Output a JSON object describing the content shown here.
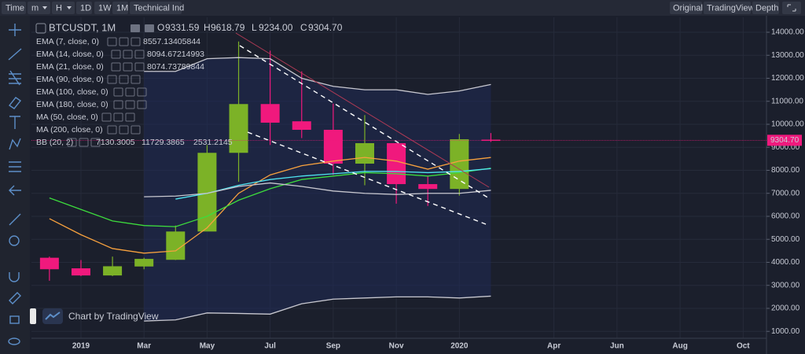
{
  "toolbar": {
    "left": [
      "Time",
      "m",
      "H",
      "1D",
      "1W",
      "1M",
      "Technical Ind"
    ],
    "active_left": 5,
    "right": [
      "Original",
      "TradingView",
      "Depth"
    ],
    "active_right": 1
  },
  "legend": {
    "symbol": "BTCUSDT, 1M",
    "ohlc": [
      {
        "key": "O",
        "value": "9331.59"
      },
      {
        "key": "H",
        "value": "9618.79"
      },
      {
        "key": "L",
        "value": "9234.00"
      },
      {
        "key": "C",
        "value": "9304.70"
      }
    ]
  },
  "indicators": [
    {
      "name": "EMA (7, close, 0)",
      "values": [
        "8557.13405844"
      ],
      "color": "#f7a13e"
    },
    {
      "name": "EMA (14, close, 0)",
      "values": [
        "8094.67214993"
      ],
      "color": "#3ddc3d"
    },
    {
      "name": "EMA (21, close, 0)",
      "values": [
        "8074.73789844"
      ],
      "color": "#4fe3f0"
    },
    {
      "name": "EMA (90, close, 0)",
      "values": []
    },
    {
      "name": "EMA (100, close, 0)",
      "values": []
    },
    {
      "name": "EMA (180, close, 0)",
      "values": []
    },
    {
      "name": "MA (50, close, 0)",
      "values": []
    },
    {
      "name": "MA (200, close, 0)",
      "values": []
    },
    {
      "name": "BB (20, 2)",
      "values": [
        "7130.3005",
        "11729.3865",
        "2531.2145"
      ],
      "color": "#ffffff"
    }
  ],
  "watermark": "Chart by TradingView",
  "chart_data": {
    "type": "candlestick",
    "x": [
      0,
      1,
      2,
      3,
      4,
      5,
      6,
      7,
      8,
      9,
      10,
      11,
      12,
      13,
      14
    ],
    "open": [
      4200,
      3740,
      3430,
      3820,
      4110,
      5340,
      8760,
      10880,
      10130,
      9760,
      8290,
      9180,
      7400,
      7190,
      9331.59
    ],
    "high": [
      4250,
      4100,
      4250,
      4200,
      5600,
      9100,
      13600,
      13200,
      12300,
      10900,
      10400,
      9200,
      7750,
      9580,
      9618.79
    ],
    "low": [
      3200,
      3400,
      3400,
      3700,
      4100,
      5400,
      7500,
      9100,
      9400,
      7800,
      7350,
      6550,
      6450,
      6900,
      9234.0
    ],
    "close": [
      3700,
      3430,
      3830,
      4150,
      5340,
      8760,
      10880,
      10070,
      9760,
      8290,
      9180,
      7400,
      7190,
      9350,
      9304.7
    ],
    "up_color": "#7cb227",
    "down_color": "#f0197d",
    "series": [
      {
        "name": "EMA (7, close, 0)",
        "color": "#f7a13e",
        "values": [
          5900,
          5200,
          4600,
          4400,
          4500,
          5500,
          7000,
          7800,
          8200,
          8400,
          8560,
          8400,
          8050,
          8400,
          8557.13405844
        ]
      },
      {
        "name": "EMA (14, close, 0)",
        "color": "#3ddc3d",
        "values": [
          6800,
          6300,
          5800,
          5600,
          5550,
          6000,
          6700,
          7200,
          7600,
          7750,
          7900,
          7850,
          7750,
          7900,
          8094.67214993
        ]
      },
      {
        "name": "EMA (21, close, 0)",
        "color": "#4fe3f0",
        "values": [
          null,
          null,
          null,
          null,
          6750,
          7000,
          7350,
          7600,
          7750,
          7850,
          7950,
          7950,
          7900,
          7950,
          8074.73789844
        ]
      },
      {
        "name": "BB upper",
        "color": "#c8c8d0",
        "values": [
          null,
          null,
          null,
          12300,
          12300,
          12850,
          12900,
          12850,
          12000,
          11650,
          11500,
          11500,
          11300,
          11450,
          11729.3865
        ]
      },
      {
        "name": "BB basis",
        "color": "#c8c8d0",
        "values": [
          null,
          null,
          null,
          6850,
          6880,
          7000,
          7300,
          7450,
          7300,
          7100,
          7000,
          6950,
          7000,
          7000,
          7130.3005
        ]
      },
      {
        "name": "BB lower",
        "color": "#c8c8d0",
        "values": [
          null,
          null,
          null,
          1450,
          1500,
          1800,
          1780,
          1750,
          2200,
          2400,
          2450,
          2500,
          2500,
          2450,
          2531.2145
        ]
      }
    ],
    "band_fill": "#1f2a55",
    "xlim": [
      -0.57,
      22.74
    ],
    "xticks": [
      {
        "value": 1,
        "label": "2019"
      },
      {
        "value": 3,
        "label": "Mar"
      },
      {
        "value": 5,
        "label": "May"
      },
      {
        "value": 7,
        "label": "Jul"
      },
      {
        "value": 9,
        "label": "Sep"
      },
      {
        "value": 11,
        "label": "Nov"
      },
      {
        "value": 13,
        "label": "2020"
      },
      {
        "value": 16,
        "label": "Apr"
      },
      {
        "value": 18,
        "label": "Jun"
      },
      {
        "value": 20,
        "label": "Aug"
      },
      {
        "value": 22,
        "label": "Oct"
      }
    ],
    "ylim": [
      700,
      14650
    ],
    "yticks": [
      {
        "value": 1000,
        "label": "1000.00"
      },
      {
        "value": 2000,
        "label": "2000.00"
      },
      {
        "value": 3000,
        "label": "3000.00"
      },
      {
        "value": 4000,
        "label": "4000.00"
      },
      {
        "value": 5000,
        "label": "5000.00"
      },
      {
        "value": 6000,
        "label": "6000.00"
      },
      {
        "value": 7000,
        "label": "7000.00"
      },
      {
        "value": 8000,
        "label": "8000.00"
      },
      {
        "value": 9000,
        "label": "9000.00"
      },
      {
        "value": 10000,
        "label": "10000.00"
      },
      {
        "value": 11000,
        "label": "11000.00"
      },
      {
        "value": 12000,
        "label": "12000.00"
      },
      {
        "value": 13000,
        "label": "13000.00"
      },
      {
        "value": 14000,
        "label": "14000.00"
      }
    ],
    "price_line": {
      "value": 9304.7,
      "label": "9304.70",
      "color": "#f0197d"
    },
    "grid": true
  }
}
